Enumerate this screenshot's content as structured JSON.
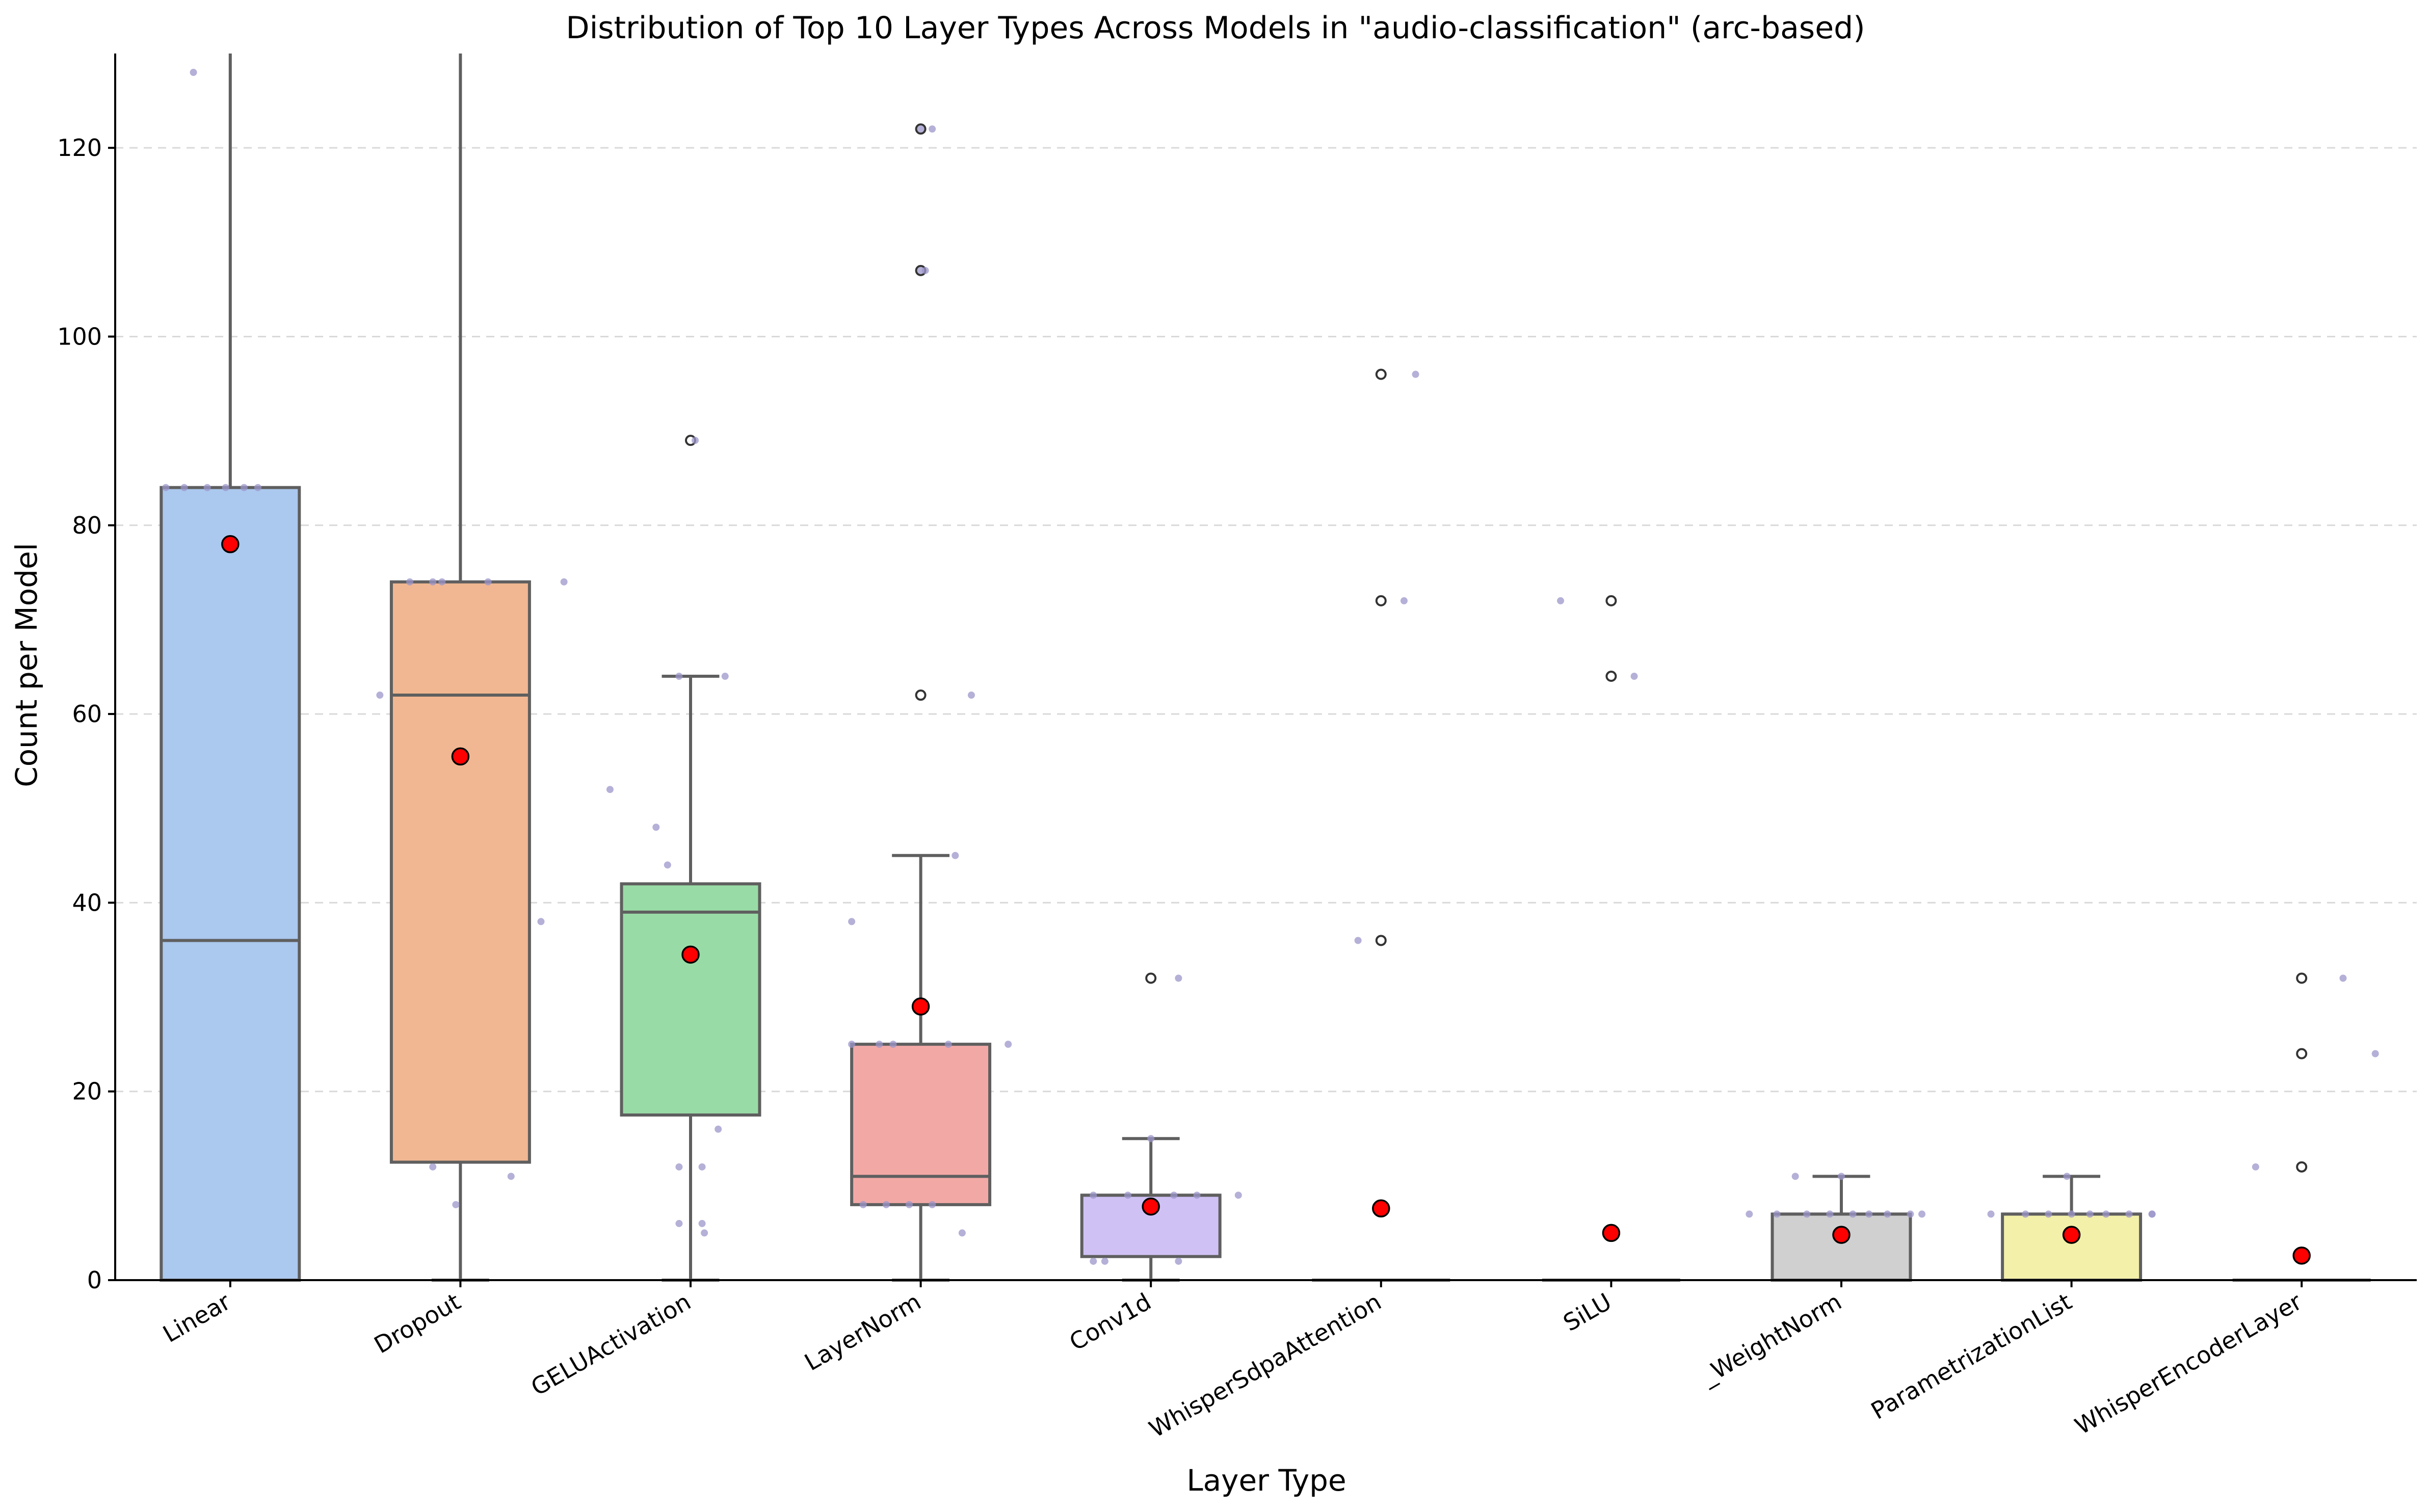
{
  "chart_data": {
    "type": "box",
    "title": "Distribution of Top 10 Layer Types Across Models in \"audio-classification\" (arc-based)",
    "xlabel": "Layer Type",
    "ylabel": "Count per Model",
    "ylim": [
      0,
      130
    ],
    "yticks": [
      0,
      20,
      40,
      60,
      80,
      100,
      120
    ],
    "grid": "y-dashed",
    "categories": [
      "Linear",
      "Dropout",
      "GELUActivation",
      "LayerNorm",
      "Conv1d",
      "WhisperSdpaAttention",
      "SiLU",
      "_WeightNorm",
      "ParametrizationList",
      "WhisperEncoderLayer"
    ],
    "colors": [
      "#abc8ee",
      "#f1b792",
      "#99dba6",
      "#f2a9a6",
      "#d0c1f5",
      "#d4c3a6",
      "#f4c2df",
      "#d0d0d0",
      "#f3f0a9",
      "#a7dde9"
    ],
    "boxes": [
      {
        "q1": 0,
        "median": 36,
        "q3": 84,
        "whislo": 0,
        "whishi": 130,
        "mean": 78,
        "outliers": []
      },
      {
        "q1": 12.5,
        "median": 62,
        "q3": 74,
        "whislo": 0,
        "whishi": 130,
        "mean": 55.5,
        "outliers": []
      },
      {
        "q1": 17.5,
        "median": 39,
        "q3": 42,
        "whislo": 0,
        "whishi": 64,
        "mean": 34.5,
        "outliers": [
          89
        ]
      },
      {
        "q1": 8,
        "median": 11,
        "q3": 25,
        "whislo": 0,
        "whishi": 45,
        "mean": 29,
        "outliers": [
          62,
          107,
          122
        ]
      },
      {
        "q1": 2.5,
        "median": 9,
        "q3": 9,
        "whislo": 0,
        "whishi": 15,
        "mean": 7.8,
        "outliers": [
          32
        ]
      },
      {
        "q1": 0,
        "median": 0,
        "q3": 0,
        "whislo": 0,
        "whishi": 0,
        "mean": 7.6,
        "outliers": [
          36,
          72,
          96
        ]
      },
      {
        "q1": 0,
        "median": 0,
        "q3": 0,
        "whislo": 0,
        "whishi": 0,
        "mean": 5,
        "outliers": [
          64,
          72
        ]
      },
      {
        "q1": 0,
        "median": 7,
        "q3": 7,
        "whislo": 0,
        "whishi": 11,
        "mean": 4.8,
        "outliers": []
      },
      {
        "q1": 0,
        "median": 7,
        "q3": 7,
        "whislo": 0,
        "whishi": 11,
        "mean": 4.8,
        "outliers": []
      },
      {
        "q1": 0,
        "median": 0,
        "q3": 0,
        "whislo": 0,
        "whishi": 0,
        "mean": 2.6,
        "outliers": [
          12,
          24,
          32
        ]
      }
    ],
    "points": [
      [
        [
          -0.16,
          128
        ],
        [
          -0.28,
          84
        ],
        [
          -0.2,
          84
        ],
        [
          -0.1,
          84
        ],
        [
          -0.02,
          84
        ],
        [
          0.06,
          84
        ],
        [
          0.12,
          84
        ]
      ],
      [
        [
          -0.35,
          62
        ],
        [
          -0.22,
          74
        ],
        [
          -0.12,
          74
        ],
        [
          -0.08,
          74
        ],
        [
          0.12,
          74
        ],
        [
          0.45,
          74
        ],
        [
          0.35,
          38
        ],
        [
          -0.12,
          12
        ],
        [
          0.22,
          11
        ],
        [
          -0.02,
          8
        ]
      ],
      [
        [
          -0.35,
          52
        ],
        [
          -0.15,
          48
        ],
        [
          -0.1,
          44
        ],
        [
          0.02,
          89
        ],
        [
          -0.05,
          64
        ],
        [
          0.15,
          64
        ],
        [
          -0.05,
          12
        ],
        [
          0.05,
          12
        ],
        [
          0.12,
          16
        ],
        [
          -0.05,
          6
        ],
        [
          0.05,
          6
        ],
        [
          0.06,
          5
        ]
      ],
      [
        [
          -0.3,
          38
        ],
        [
          0.15,
          45
        ],
        [
          0.0,
          122
        ],
        [
          0.05,
          122
        ],
        [
          0.0,
          107
        ],
        [
          0.02,
          107
        ],
        [
          0.22,
          62
        ],
        [
          -0.3,
          25
        ],
        [
          -0.18,
          25
        ],
        [
          -0.12,
          25
        ],
        [
          0.12,
          25
        ],
        [
          0.38,
          25
        ],
        [
          -0.25,
          8
        ],
        [
          -0.15,
          8
        ],
        [
          -0.05,
          8
        ],
        [
          0.05,
          8
        ],
        [
          0.18,
          5
        ]
      ],
      [
        [
          0.12,
          32
        ],
        [
          0.0,
          15
        ],
        [
          -0.25,
          9
        ],
        [
          -0.1,
          9
        ],
        [
          0.1,
          9
        ],
        [
          0.2,
          9
        ],
        [
          0.38,
          9
        ],
        [
          -0.25,
          2
        ],
        [
          -0.2,
          2
        ],
        [
          0.12,
          2
        ]
      ],
      [
        [
          -0.1,
          36
        ],
        [
          0.1,
          72
        ],
        [
          0.15,
          96
        ]
      ],
      [
        [
          -0.22,
          72
        ],
        [
          0.1,
          64
        ]
      ],
      [
        [
          -0.4,
          7
        ],
        [
          -0.28,
          7
        ],
        [
          -0.15,
          7
        ],
        [
          -0.05,
          7
        ],
        [
          0.05,
          7
        ],
        [
          0.12,
          7
        ],
        [
          0.2,
          7
        ],
        [
          0.3,
          7
        ],
        [
          0.35,
          7
        ],
        [
          -0.2,
          11
        ],
        [
          0.0,
          11
        ]
      ],
      [
        [
          -0.35,
          7
        ],
        [
          -0.2,
          7
        ],
        [
          -0.1,
          7
        ],
        [
          0.0,
          7
        ],
        [
          0.08,
          7
        ],
        [
          0.15,
          7
        ],
        [
          0.25,
          7
        ],
        [
          0.35,
          7
        ],
        [
          0.35,
          7
        ],
        [
          -0.02,
          11
        ]
      ],
      [
        [
          -0.2,
          12
        ],
        [
          0.18,
          32
        ],
        [
          0.32,
          24
        ]
      ]
    ]
  }
}
